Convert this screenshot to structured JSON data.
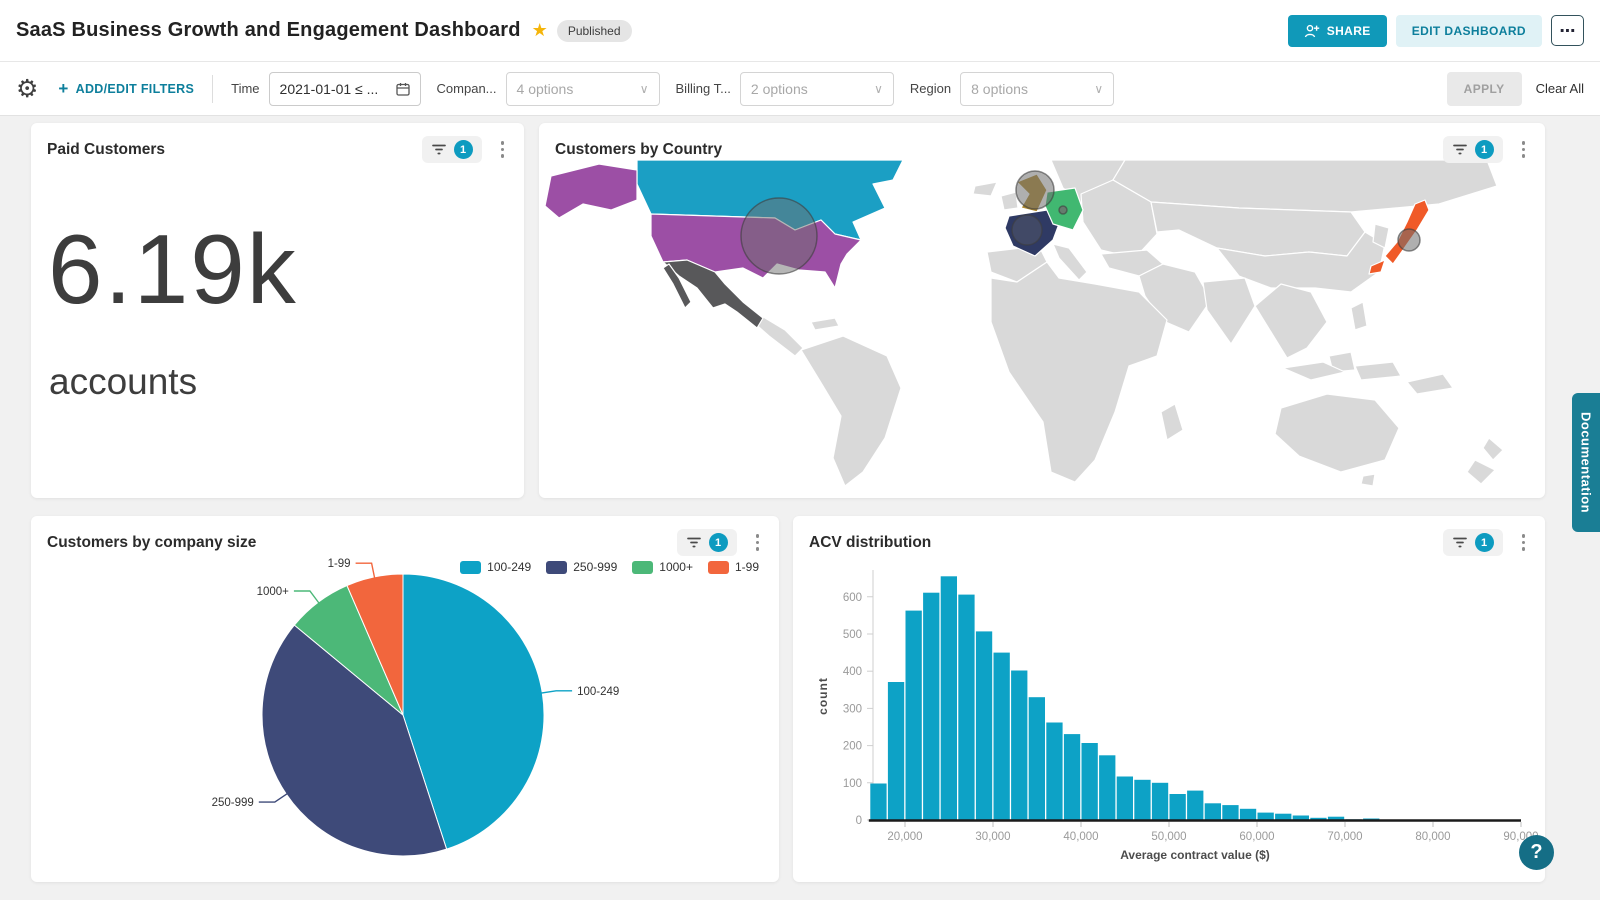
{
  "header": {
    "title": "SaaS Business Growth and Engagement Dashboard",
    "published_badge": "Published",
    "share_button": "SHARE",
    "edit_dashboard_button": "EDIT DASHBOARD"
  },
  "filter_bar": {
    "add_edit_filters": "ADD/EDIT FILTERS",
    "time": {
      "label": "Time",
      "value": "2021-01-01 ≤ ..."
    },
    "company": {
      "label": "Compan...",
      "value": "4 options"
    },
    "billing": {
      "label": "Billing T...",
      "value": "2 options"
    },
    "region": {
      "label": "Region",
      "value": "8 options"
    },
    "apply_button": "APPLY",
    "clear_all_button": "Clear All"
  },
  "widgets": {
    "paid_customers": {
      "title": "Paid Customers",
      "filter_count": "1",
      "value": "6.19k",
      "unit": "accounts"
    },
    "customers_by_country": {
      "title": "Customers by Country",
      "filter_count": "1"
    },
    "company_size": {
      "title": "Customers by company size",
      "filter_count": "1"
    },
    "acv": {
      "title": "ACV distribution",
      "filter_count": "1"
    }
  },
  "icons": {
    "gear": "⚙",
    "star": "★",
    "plus": "+",
    "chevron_down": "∨",
    "more": "⋯",
    "help": "?"
  },
  "side": {
    "documentation_tab": "Documentation"
  },
  "chart_data": [
    {
      "type": "pie",
      "title": "Customers by company size",
      "labels": [
        "100-249",
        "250-999",
        "1000+",
        "1-99"
      ],
      "values": [
        45,
        41,
        7.5,
        6.5
      ],
      "unit": "percent-estimated-from-arc-angles",
      "colors": [
        "#0da2c6",
        "#3e4a79",
        "#4cb878",
        "#f2663d"
      ],
      "legend_position": "top-right"
    },
    {
      "type": "bar",
      "title": "ACV distribution",
      "xlabel": "Average contract value ($)",
      "ylabel": "count",
      "bar_color": "#0da2c6",
      "bin_width": 2000,
      "xlim": [
        16000,
        90000
      ],
      "ylim": [
        0,
        680
      ],
      "bin_starts": [
        16000,
        18000,
        20000,
        22000,
        24000,
        26000,
        28000,
        30000,
        32000,
        34000,
        36000,
        38000,
        40000,
        42000,
        44000,
        46000,
        48000,
        50000,
        52000,
        54000,
        56000,
        58000,
        60000,
        62000,
        64000,
        66000,
        68000,
        70000,
        72000,
        74000
      ],
      "counts": [
        98,
        371,
        563,
        611,
        655,
        606,
        507,
        450,
        402,
        330,
        262,
        231,
        207,
        174,
        117,
        108,
        100,
        70,
        79,
        45,
        40,
        30,
        20,
        17,
        12,
        6,
        9,
        2,
        4,
        1
      ],
      "x_ticks": [
        {
          "v": 20000,
          "label": "20,000"
        },
        {
          "v": 30000,
          "label": "30,000"
        },
        {
          "v": 40000,
          "label": "40,000"
        },
        {
          "v": 50000,
          "label": "50,000"
        },
        {
          "v": 60000,
          "label": "60,000"
        },
        {
          "v": 70000,
          "label": "70,000"
        },
        {
          "v": 80000,
          "label": "80,000"
        },
        {
          "v": 90000,
          "label": "90,000"
        }
      ],
      "y_ticks": [
        {
          "v": 0,
          "label": "0"
        },
        {
          "v": 100,
          "label": "100"
        },
        {
          "v": 200,
          "label": "200"
        },
        {
          "v": 300,
          "label": "300"
        },
        {
          "v": 400,
          "label": "400"
        },
        {
          "v": 500,
          "label": "500"
        },
        {
          "v": 600,
          "label": "600"
        }
      ]
    },
    {
      "type": "map",
      "title": "Customers by Country",
      "base_color": "#d9d9d9",
      "regions": {
        "canada": {
          "name": "Canada",
          "color": "#1b9fc4"
        },
        "united-states": {
          "name": "United States",
          "color": "#9c4fa5"
        },
        "mexico": {
          "name": "Mexico",
          "color": "#58585a"
        },
        "united-kingdom": {
          "name": "United Kingdom",
          "color": "#b08a2f"
        },
        "france": {
          "name": "France",
          "color": "#2f3a64"
        },
        "germany": {
          "name": "Germany",
          "color": "#41b871"
        },
        "japan": {
          "name": "Japan",
          "color": "#f05a28"
        }
      },
      "bubbles": [
        {
          "region": "united-states",
          "r": 38,
          "opacity": 0.5
        },
        {
          "region": "united-kingdom",
          "r": 19,
          "opacity": 0.55
        },
        {
          "region": "france",
          "r": 15,
          "opacity": 0.3
        },
        {
          "region": "japan",
          "r": 11,
          "opacity": 0.55
        },
        {
          "region": "germany",
          "r": 4,
          "opacity": 0.8
        }
      ]
    }
  ]
}
